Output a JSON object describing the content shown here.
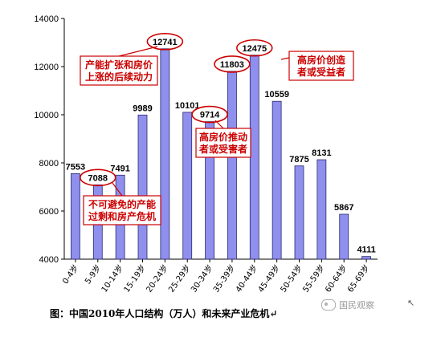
{
  "chart_data": {
    "type": "bar",
    "categories": [
      "0-4岁",
      "5-9岁",
      "10-14岁",
      "15-19岁",
      "20-24岁",
      "25-29岁",
      "30-34岁",
      "35-39岁",
      "40-44岁",
      "45-49岁",
      "50-54岁",
      "55-59岁",
      "60-64岁",
      "65-69岁"
    ],
    "values": [
      7553,
      7088,
      7491,
      9989,
      12741,
      10101,
      9714,
      11803,
      12475,
      10559,
      7875,
      8131,
      5867,
      4111
    ],
    "data_labels": [
      "7553",
      "7088",
      "7491",
      "9989",
      "12741",
      "10101",
      "9714",
      "11803",
      "12475",
      "10559",
      "7875",
      "8131",
      "5867",
      "4111"
    ],
    "ylim": [
      4000,
      14000
    ],
    "yticks": [
      4000,
      6000,
      8000,
      10000,
      12000,
      14000
    ],
    "ytick_labels": [
      "4000",
      "6000",
      "8000",
      "10000",
      "12000",
      "14000"
    ],
    "grid": false,
    "bar_color": "#8f8fee",
    "bar_stroke": "#2a2a6a",
    "highlight_color": "#cc0000",
    "circled_indices": [
      1,
      4,
      6,
      7,
      8
    ],
    "annotations": [
      {
        "lines": [
          "产能扩张和房价",
          "上涨的后续动力"
        ],
        "target": 4
      },
      {
        "lines": [
          "高房价创造",
          "者或受益者"
        ],
        "target": 8
      },
      {
        "lines": [
          "高房价推动",
          "者或受害者"
        ],
        "target": 6
      },
      {
        "lines": [
          "不可避免的产能",
          "过剩和房产危机"
        ],
        "target": 1
      }
    ]
  },
  "caption": "图：中国2010年人口结构（万人）和未来产业危机",
  "caption_mark": "↵",
  "watermark": "国民观察",
  "corner_mark": "↖"
}
